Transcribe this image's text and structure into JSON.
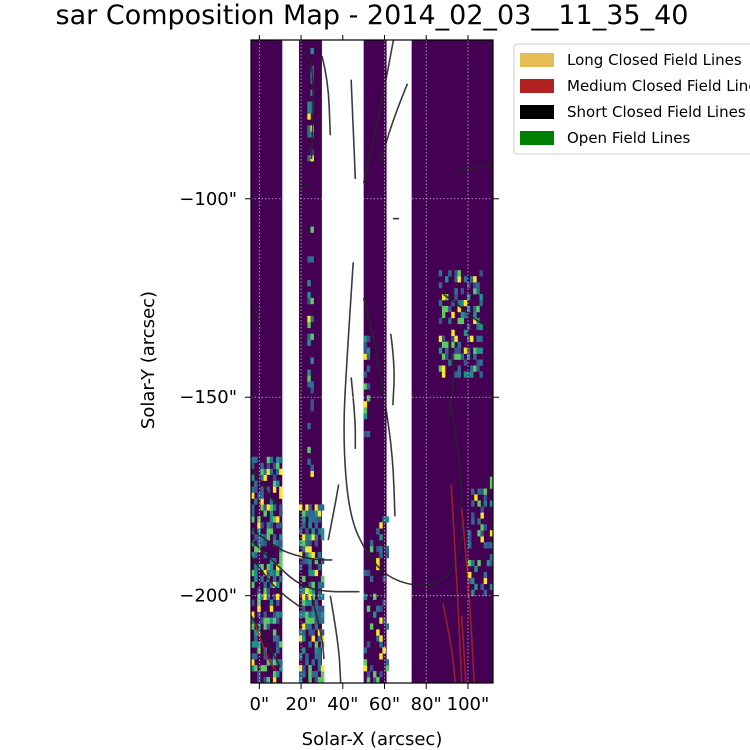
{
  "chart_data": {
    "type": "heatmap",
    "title": "sar Composition Map - 2014_02_03__11_35_40",
    "xlabel": "Solar-X (arcsec)",
    "ylabel": "Solar-Y (arcsec)",
    "xlim": [
      -4,
      112
    ],
    "ylim": [
      -222,
      -60
    ],
    "xticks": [
      0,
      20,
      40,
      60,
      80,
      100
    ],
    "xtick_labels": [
      "0\"",
      "20\"",
      "40\"",
      "60\"",
      "80\"",
      "100\""
    ],
    "yticks": [
      -100,
      -150,
      -200
    ],
    "ytick_labels": [
      "−100\"",
      "−150\"",
      "−200\""
    ],
    "grid": true,
    "colormap": "viridis",
    "background_value_color": "#440154",
    "columns": [
      {
        "x_start": -4,
        "x_end": 11
      },
      {
        "x_start": 19,
        "x_end": 30
      },
      {
        "x_start": 50,
        "x_end": 61
      },
      {
        "x_start": 73,
        "x_end": 112
      }
    ],
    "legend": {
      "position": "upper-right-outside",
      "entries": [
        {
          "label": "Long Closed Field Lines",
          "color": "#e6bd55"
        },
        {
          "label": "Medium Closed Field Lines",
          "color": "#b22222"
        },
        {
          "label": "Short Closed Field Lines",
          "color": "#000000"
        },
        {
          "label": "Open Field Lines",
          "color": "#008000"
        }
      ]
    },
    "field_lines": [
      {
        "kind": "short",
        "points": [
          [
            21,
            -63
          ],
          [
            25,
            -64
          ],
          [
            26,
            -75
          ],
          [
            25,
            -90
          ]
        ]
      },
      {
        "kind": "short",
        "points": [
          [
            30,
            -64
          ],
          [
            33,
            -70
          ],
          [
            34,
            -84
          ]
        ]
      },
      {
        "kind": "short",
        "points": [
          [
            44,
            -70
          ],
          [
            45,
            -82
          ],
          [
            46,
            -95
          ]
        ]
      },
      {
        "kind": "short",
        "points": [
          [
            65,
            -58
          ],
          [
            60,
            -72
          ],
          [
            55,
            -85
          ],
          [
            50,
            -96
          ]
        ]
      },
      {
        "kind": "short",
        "points": [
          [
            71,
            -71
          ],
          [
            64,
            -80
          ],
          [
            58,
            -91
          ]
        ]
      },
      {
        "kind": "short",
        "points": [
          [
            20,
            -97
          ],
          [
            23,
            -97
          ]
        ]
      },
      {
        "kind": "short",
        "points": [
          [
            64,
            -105
          ],
          [
            67,
            -105
          ]
        ]
      },
      {
        "kind": "short",
        "points": [
          [
            96,
            -93
          ],
          [
            104,
            -92
          ],
          [
            112,
            -92
          ]
        ]
      },
      {
        "kind": "short",
        "points": [
          [
            -2,
            -127
          ],
          [
            0,
            -131
          ],
          [
            1,
            -133
          ]
        ]
      },
      {
        "kind": "short",
        "points": [
          [
            45,
            -116
          ],
          [
            42,
            -140
          ],
          [
            40,
            -160
          ],
          [
            43,
            -180
          ],
          [
            52,
            -190
          ],
          [
            63,
            -196
          ],
          [
            80,
            -198
          ],
          [
            92,
            -195
          ],
          [
            98,
            -185
          ],
          [
            96,
            -165
          ],
          [
            91,
            -150
          ]
        ]
      },
      {
        "kind": "short",
        "points": [
          [
            50,
            -125
          ],
          [
            55,
            -135
          ],
          [
            60,
            -150
          ],
          [
            64,
            -165
          ],
          [
            65,
            -180
          ]
        ]
      },
      {
        "kind": "short",
        "points": [
          [
            63,
            -134
          ],
          [
            65,
            -142
          ],
          [
            64,
            -152
          ]
        ]
      },
      {
        "kind": "short",
        "points": [
          [
            44,
            -145
          ],
          [
            46,
            -155
          ],
          [
            46,
            -163
          ]
        ]
      },
      {
        "kind": "short",
        "points": [
          [
            91,
            -136
          ],
          [
            94,
            -142
          ],
          [
            91,
            -155
          ]
        ]
      },
      {
        "kind": "short",
        "points": [
          [
            88,
            -124
          ],
          [
            96,
            -127
          ],
          [
            102,
            -130
          ],
          [
            112,
            -133
          ]
        ]
      },
      {
        "kind": "short",
        "points": [
          [
            -4,
            -168
          ],
          [
            2,
            -172
          ],
          [
            6,
            -176
          ],
          [
            10,
            -177
          ]
        ]
      },
      {
        "kind": "short",
        "points": [
          [
            -4,
            -183
          ],
          [
            8,
            -188
          ],
          [
            18,
            -190
          ],
          [
            28,
            -191
          ],
          [
            35,
            -191
          ]
        ]
      },
      {
        "kind": "short",
        "points": [
          [
            -4,
            -186
          ],
          [
            6,
            -191
          ],
          [
            18,
            -197
          ],
          [
            30,
            -199
          ],
          [
            48,
            -199
          ]
        ]
      },
      {
        "kind": "short",
        "points": [
          [
            -4,
            -190
          ],
          [
            4,
            -196
          ],
          [
            12,
            -200
          ],
          [
            20,
            -203
          ]
        ]
      },
      {
        "kind": "short",
        "points": [
          [
            -4,
            -205
          ],
          [
            4,
            -212
          ],
          [
            10,
            -218
          ]
        ]
      },
      {
        "kind": "short",
        "points": [
          [
            25,
            -200
          ],
          [
            30,
            -210
          ],
          [
            31,
            -216
          ]
        ]
      },
      {
        "kind": "short",
        "points": [
          [
            34,
            -200
          ],
          [
            38,
            -212
          ],
          [
            39,
            -222
          ]
        ]
      },
      {
        "kind": "short",
        "points": [
          [
            33,
            -186
          ],
          [
            36,
            -178
          ],
          [
            38,
            -172
          ]
        ]
      },
      {
        "kind": "medium",
        "points": [
          [
            92,
            -172
          ],
          [
            94,
            -190
          ],
          [
            96,
            -210
          ],
          [
            97,
            -222
          ]
        ]
      },
      {
        "kind": "medium",
        "points": [
          [
            97,
            -178
          ],
          [
            100,
            -195
          ],
          [
            102,
            -212
          ],
          [
            103,
            -222
          ]
        ]
      },
      {
        "kind": "medium",
        "points": [
          [
            88,
            -202
          ],
          [
            92,
            -212
          ],
          [
            94,
            -222
          ]
        ]
      },
      {
        "kind": "medium",
        "points": [
          [
            97,
            -205
          ],
          [
            98,
            -214
          ],
          [
            99,
            -222
          ]
        ]
      },
      {
        "kind": "medium",
        "points": [
          [
            -2,
            -207
          ],
          [
            3,
            -215
          ],
          [
            8,
            -219
          ]
        ]
      }
    ]
  }
}
